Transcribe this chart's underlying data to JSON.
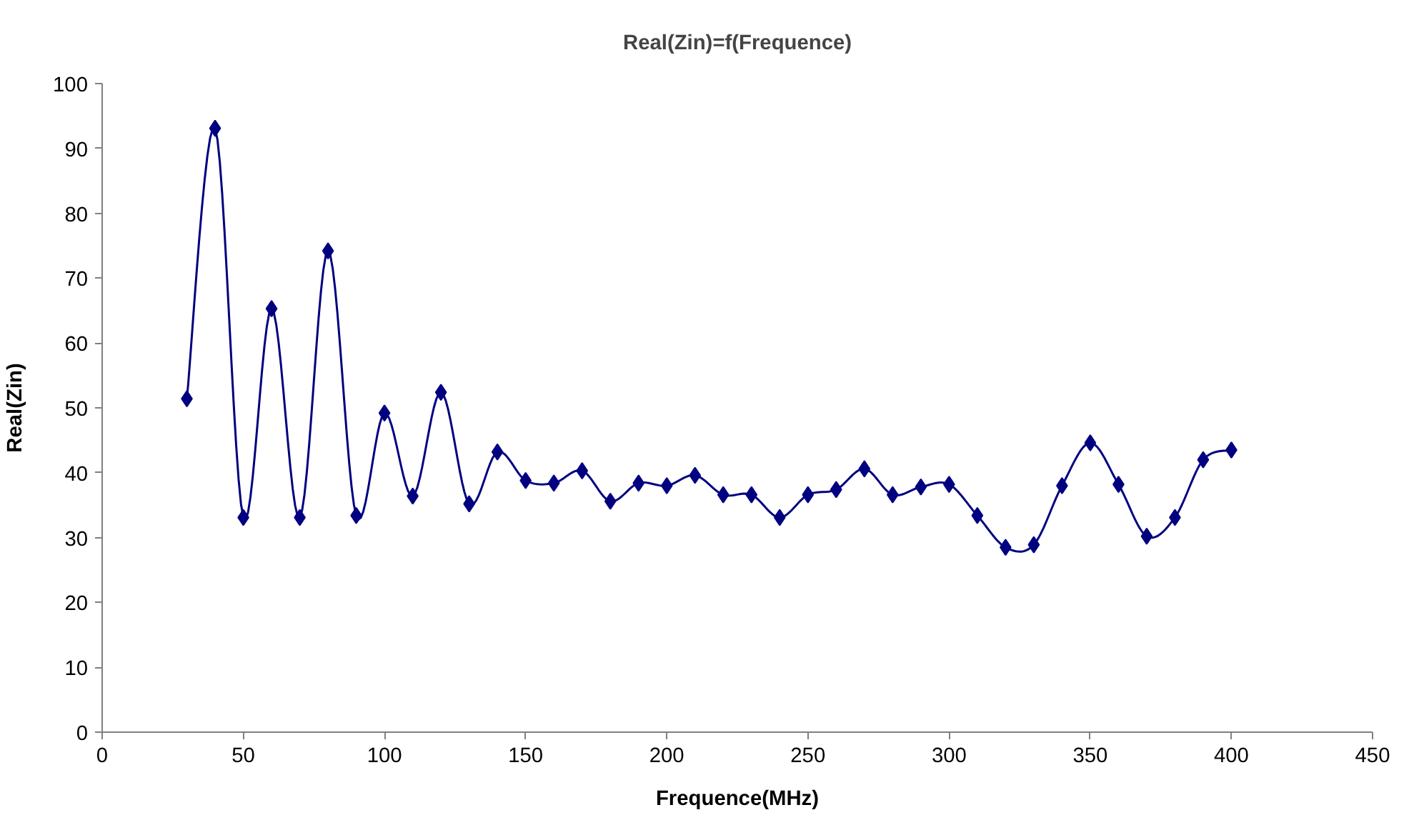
{
  "chart_data": {
    "type": "line",
    "title": "Real(Zin)=f(Frequence)",
    "xlabel": "Frequence(MHz)",
    "ylabel": "Real(Zin)",
    "x": [
      30,
      40,
      50,
      60,
      70,
      80,
      90,
      100,
      110,
      120,
      130,
      140,
      150,
      160,
      170,
      180,
      190,
      200,
      210,
      220,
      230,
      240,
      250,
      260,
      270,
      280,
      290,
      300,
      310,
      320,
      330,
      340,
      350,
      360,
      370,
      380,
      390,
      400
    ],
    "series": [
      {
        "color": "#000080",
        "values": [
          51.4,
          93.1,
          33.1,
          65.3,
          33.1,
          74.2,
          33.4,
          49.2,
          36.4,
          52.4,
          35.2,
          43.2,
          38.8,
          38.4,
          40.3,
          35.6,
          38.4,
          38.0,
          39.6,
          36.6,
          36.6,
          33.1,
          36.6,
          37.4,
          40.6,
          36.6,
          37.8,
          38.2,
          33.4,
          28.5,
          28.9,
          38.0,
          44.6,
          38.2,
          30.2,
          33.1,
          42.0,
          43.5
        ]
      }
    ],
    "xlim": [
      0,
      450
    ],
    "xticks": [
      0,
      50,
      100,
      150,
      200,
      250,
      300,
      350,
      400,
      450
    ],
    "ylim": [
      0,
      100
    ],
    "yticks": [
      0,
      10,
      20,
      30,
      40,
      50,
      60,
      70,
      80,
      90,
      100
    ],
    "grid": false,
    "marker": "diamond",
    "line_style": "solid"
  }
}
